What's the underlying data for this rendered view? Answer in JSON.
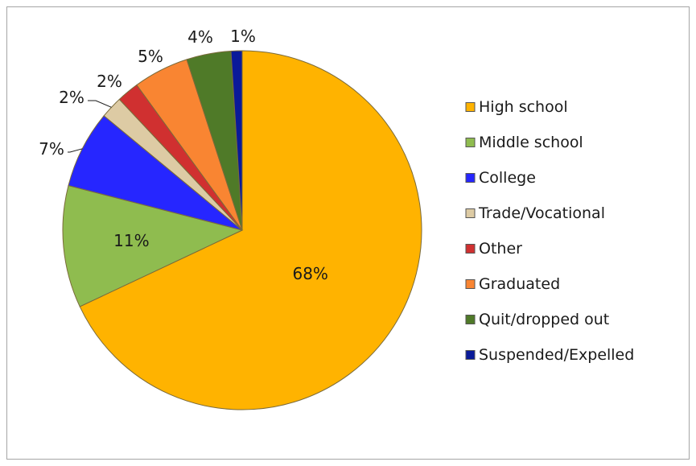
{
  "chart_data": {
    "type": "pie",
    "title": "",
    "start_angle_deg": 0,
    "direction": "clockwise",
    "legend_position": "right",
    "slices": [
      {
        "label": "High school",
        "value": 68,
        "value_label": "68%",
        "color": "#FFB300"
      },
      {
        "label": "Middle school",
        "value": 11,
        "value_label": "11%",
        "color": "#8FBC4F"
      },
      {
        "label": "College",
        "value": 7,
        "value_label": "7%",
        "color": "#2626FF"
      },
      {
        "label": "Trade/Vocational",
        "value": 2,
        "value_label": "2%",
        "color": "#DDCBA4"
      },
      {
        "label": "Other",
        "value": 2,
        "value_label": "2%",
        "color": "#D03030"
      },
      {
        "label": "Graduated",
        "value": 5,
        "value_label": "5%",
        "color": "#F98532"
      },
      {
        "label": "Quit/dropped out",
        "value": 4,
        "value_label": "4%",
        "color": "#4F7A28"
      },
      {
        "label": "Suspended/Expelled",
        "value": 1,
        "value_label": "1%",
        "color": "#0A1A99"
      }
    ]
  }
}
